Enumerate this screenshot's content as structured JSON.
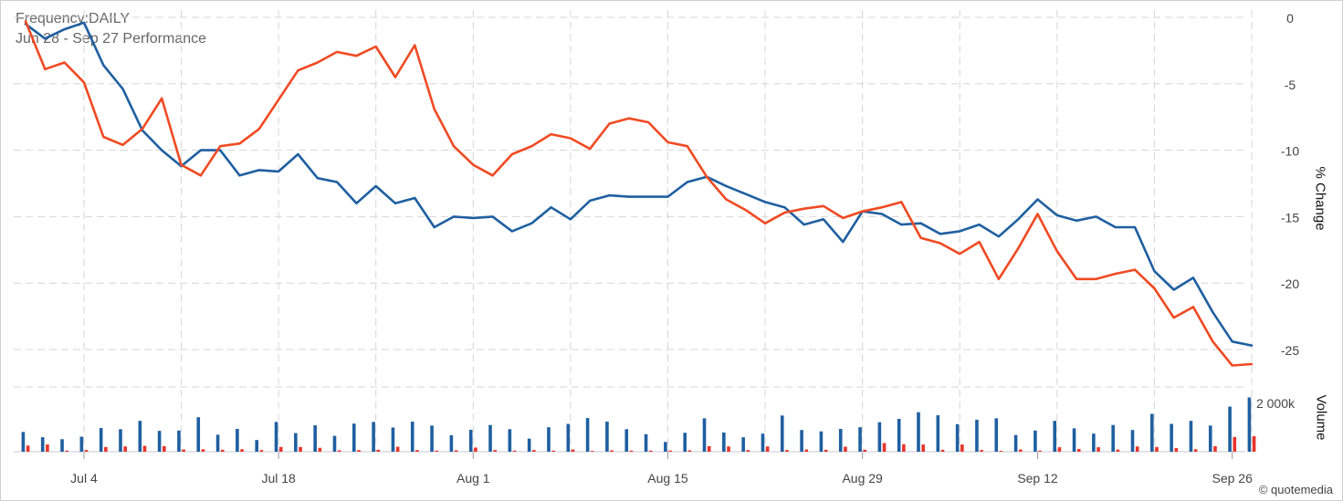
{
  "header": {
    "frequency": "Frequency:DAILY",
    "period": "Jun 28 - Sep 27 Performance"
  },
  "credit": "© quotemedia",
  "colors": {
    "blue": "#1f5fa1",
    "orange": "#f04a23",
    "red": "#e8352a",
    "grid": "#d6d6d6"
  },
  "chart_data": [
    {
      "type": "line",
      "ylabel": "% Change",
      "ylim": [
        -26.5,
        0
      ],
      "yticks": [
        0,
        -5,
        -10,
        -15,
        -20,
        -25
      ],
      "xtick_labels": [
        "Jul 4",
        "Jul 18",
        "Aug 1",
        "Aug 15",
        "Aug 29",
        "Sep 12",
        "Sep 26"
      ],
      "xtick_index": [
        3,
        13,
        23,
        33,
        43,
        52,
        62
      ],
      "series": [
        {
          "color": "#1f5fa1",
          "values": [
            -0.5,
            -1.6,
            -0.9,
            -0.4,
            -3.6,
            -5.4,
            -8.5,
            -10.0,
            -11.2,
            -10.0,
            -10.0,
            -11.9,
            -11.5,
            -11.6,
            -10.3,
            -12.1,
            -12.4,
            -14.0,
            -12.7,
            -14.0,
            -13.6,
            -15.8,
            -15.0,
            -15.1,
            -15.0,
            -16.1,
            -15.5,
            -14.3,
            -15.2,
            -13.8,
            -13.4,
            -13.5,
            -13.5,
            -13.5,
            -12.4,
            -12.0,
            -12.7,
            -13.3,
            -13.9,
            -14.3,
            -15.6,
            -15.2,
            -16.9,
            -14.6,
            -14.8,
            -15.6,
            -15.5,
            -16.3,
            -16.1,
            -15.6,
            -16.5,
            -15.2,
            -13.7,
            -14.9,
            -15.3,
            -15.0,
            -15.8,
            -15.8,
            -19.1,
            -20.5,
            -19.6,
            -22.2,
            -24.4,
            -24.7
          ]
        },
        {
          "color": "#f04a23",
          "values": [
            -0.3,
            -3.9,
            -3.4,
            -4.9,
            -9.0,
            -9.6,
            -8.4,
            -6.1,
            -11.1,
            -11.9,
            -9.7,
            -9.5,
            -8.4,
            -6.2,
            -4.0,
            -3.4,
            -2.6,
            -2.9,
            -2.2,
            -4.5,
            -2.1,
            -6.9,
            -9.7,
            -11.1,
            -11.9,
            -10.3,
            -9.7,
            -8.8,
            -9.1,
            -9.9,
            -8.0,
            -7.6,
            -7.9,
            -9.4,
            -9.7,
            -12.0,
            -13.7,
            -14.5,
            -15.5,
            -14.7,
            -14.4,
            -14.2,
            -15.1,
            -14.6,
            -14.3,
            -13.9,
            -16.6,
            -17.0,
            -17.8,
            -16.9,
            -19.7,
            -17.4,
            -14.8,
            -17.6,
            -19.7,
            -19.7,
            -19.3,
            -19.0,
            -20.4,
            -22.6,
            -21.8,
            -24.4,
            -26.2,
            -26.1
          ]
        }
      ]
    },
    {
      "type": "bar",
      "ylabel": "Volume",
      "max_label": "2 000k",
      "ylim": [
        0,
        2000
      ],
      "series": [
        {
          "color": "#1f5fa1",
          "values": [
            710,
            520,
            450,
            540,
            850,
            810,
            1110,
            750,
            760,
            1240,
            610,
            820,
            420,
            1070,
            670,
            950,
            570,
            1010,
            1070,
            870,
            1080,
            940,
            590,
            790,
            960,
            810,
            470,
            880,
            1000,
            1210,
            1080,
            810,
            630,
            350,
            680,
            1200,
            690,
            520,
            650,
            1300,
            780,
            730,
            820,
            880,
            1060,
            1180,
            1420,
            1310,
            990,
            1150,
            1200,
            600,
            760,
            1110,
            840,
            650,
            960,
            780,
            1360,
            1000,
            1110,
            940,
            1620,
            1950
          ]
        },
        {
          "color": "#e8352a",
          "values": [
            220,
            260,
            40,
            60,
            170,
            190,
            210,
            200,
            80,
            90,
            70,
            90,
            60,
            170,
            170,
            140,
            50,
            60,
            70,
            180,
            60,
            40,
            50,
            150,
            60,
            40,
            60,
            40,
            80,
            30,
            50,
            40,
            40,
            40,
            50,
            200,
            190,
            60,
            190,
            60,
            80,
            70,
            180,
            70,
            310,
            270,
            260,
            70,
            260,
            60,
            30,
            80,
            40,
            160,
            100,
            160,
            80,
            190,
            170,
            130,
            90,
            200,
            530,
            560
          ]
        }
      ]
    }
  ]
}
